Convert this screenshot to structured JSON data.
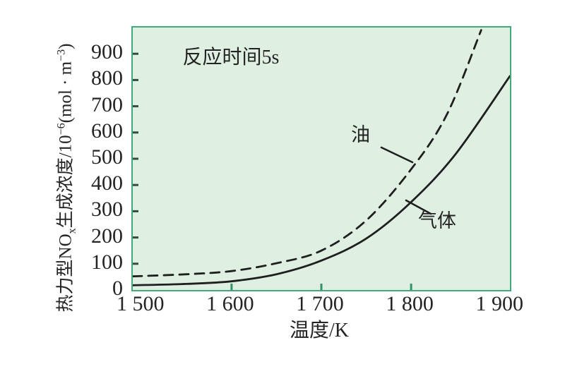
{
  "chart": {
    "annotation": "反应时间5s",
    "xlabel": "温度/K",
    "ylabel": {
      "p1": "热力型NO",
      "sub1": "x",
      "p2": "生成浓度/10",
      "sup1": "−6",
      "p3": "(mol · m",
      "sup2": "−3",
      "p4": ")"
    },
    "series_labels": {
      "oil": "油",
      "gas": "气体"
    },
    "colors": {
      "plot_bg": "#dff0e3",
      "border": "#43a87a",
      "curve": "#1f1f1f",
      "text": "#242424",
      "y_tick_mark": "#2d4f41",
      "x_tick_mark": "#35906c"
    }
  },
  "chart_data": {
    "type": "line",
    "title": "",
    "annotation": "反应时间5s",
    "xlabel": "温度/K",
    "ylabel": "热力型NOx生成浓度/10⁻⁶(mol·m⁻³)",
    "xlim": [
      1490,
      1910
    ],
    "ylim": [
      0,
      1000
    ],
    "grid": false,
    "legend_position": "inline-callouts",
    "x_ticks": {
      "values": [
        1500,
        1600,
        1700,
        1800,
        1900
      ],
      "labels": [
        "1 500",
        "1 600",
        "1 700",
        "1 800",
        "1 900"
      ],
      "marks": [
        1600,
        1700,
        1800
      ]
    },
    "y_ticks": {
      "values": [
        0,
        100,
        200,
        300,
        400,
        500,
        600,
        700,
        800,
        900
      ],
      "labels": [
        "0",
        "100",
        "200",
        "300",
        "400",
        "500",
        "600",
        "700",
        "800",
        "900"
      ],
      "marks": [
        100,
        200,
        300,
        400,
        500,
        600,
        700,
        800,
        900
      ]
    },
    "series": [
      {
        "name": "油",
        "style": "dashed",
        "x": [
          1490,
          1550,
          1600,
          1650,
          1700,
          1750,
          1800,
          1840,
          1878
        ],
        "y": [
          52,
          60,
          72,
          102,
          150,
          265,
          460,
          670,
          990
        ]
      },
      {
        "name": "气体",
        "style": "solid",
        "x": [
          1490,
          1550,
          1600,
          1650,
          1700,
          1750,
          1800,
          1850,
          1910
        ],
        "y": [
          18,
          23,
          33,
          60,
          112,
          196,
          335,
          520,
          815
        ]
      }
    ]
  }
}
